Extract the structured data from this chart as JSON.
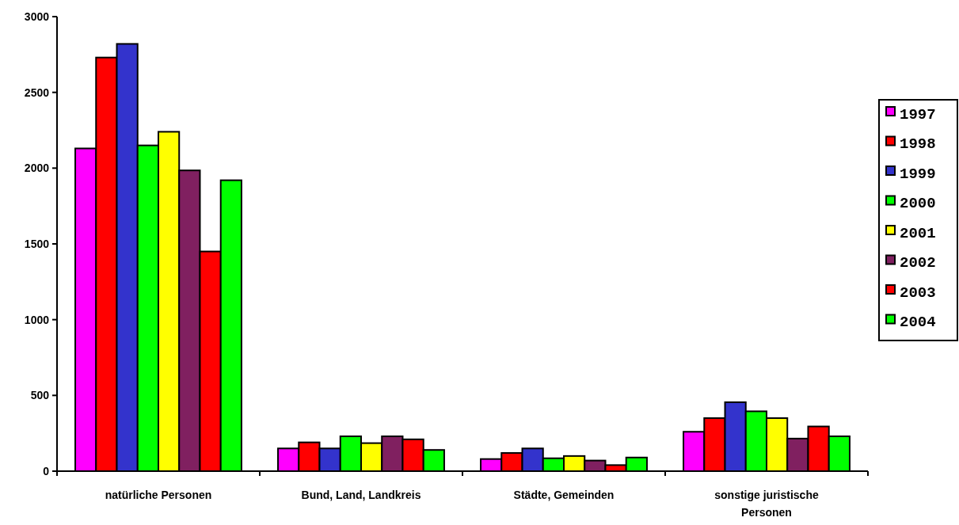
{
  "chart_data": {
    "type": "bar",
    "categories": [
      "natürliche Personen",
      "Bund, Land, Landkreis",
      "Städte, Gemeinden",
      "sonstige juristische Personen"
    ],
    "series": [
      {
        "name": "1997",
        "color": "#ff00ff",
        "values": [
          2130,
          150,
          80,
          260
        ]
      },
      {
        "name": "1998",
        "color": "#ff0000",
        "values": [
          2730,
          190,
          120,
          350
        ]
      },
      {
        "name": "1999",
        "color": "#3333cc",
        "values": [
          2820,
          150,
          150,
          455
        ]
      },
      {
        "name": "2000",
        "color": "#00ff00",
        "values": [
          2150,
          230,
          85,
          395
        ]
      },
      {
        "name": "2001",
        "color": "#ffff00",
        "values": [
          2240,
          185,
          100,
          350
        ]
      },
      {
        "name": "2002",
        "color": "#802060",
        "values": [
          1985,
          230,
          70,
          215
        ]
      },
      {
        "name": "2003",
        "color": "#ff0000",
        "values": [
          1450,
          210,
          40,
          295
        ]
      },
      {
        "name": "2004",
        "color": "#00ff00",
        "values": [
          1920,
          140,
          90,
          230
        ]
      }
    ],
    "ylim": [
      0,
      3000
    ],
    "yticks": [
      0,
      500,
      1000,
      1500,
      2000,
      2500,
      3000
    ],
    "legend": "right"
  }
}
